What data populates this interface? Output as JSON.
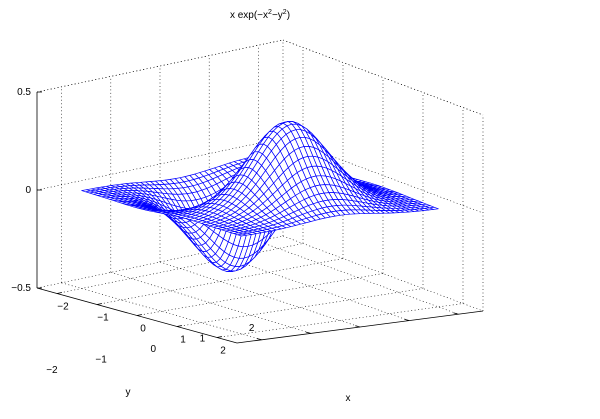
{
  "chart_data": {
    "type": "surface",
    "title": "x exp(-x^2-y^2)",
    "title_parts": {
      "base": "x exp(−x",
      "exp1": "2",
      "mid": "−y",
      "exp2": "2",
      "end": ")"
    },
    "xlabel": "x",
    "ylabel": "y",
    "zlabel": "",
    "function": "z = x * exp(-x^2 - y^2)",
    "grid_points": 40,
    "xlim": [
      -2.5,
      2.5
    ],
    "ylim": [
      -2.5,
      2.5
    ],
    "zlim": [
      -0.5,
      0.5
    ],
    "x_ticks": [
      -2,
      -1,
      0,
      1,
      2
    ],
    "x_tick_labels": [
      "−2",
      "−1",
      "0",
      "1",
      "2"
    ],
    "y_ticks": [
      -2,
      -1,
      0,
      1,
      2
    ],
    "y_tick_labels": [
      "−2",
      "−1",
      "0",
      "1",
      "2"
    ],
    "z_ticks": [
      -0.5,
      0,
      0.5
    ],
    "z_tick_labels": [
      "−0.5",
      "0",
      "0.5"
    ],
    "mesh_color": "#0000ff",
    "grid": true,
    "grid_style": "dotted",
    "view": "3d-mesh"
  }
}
